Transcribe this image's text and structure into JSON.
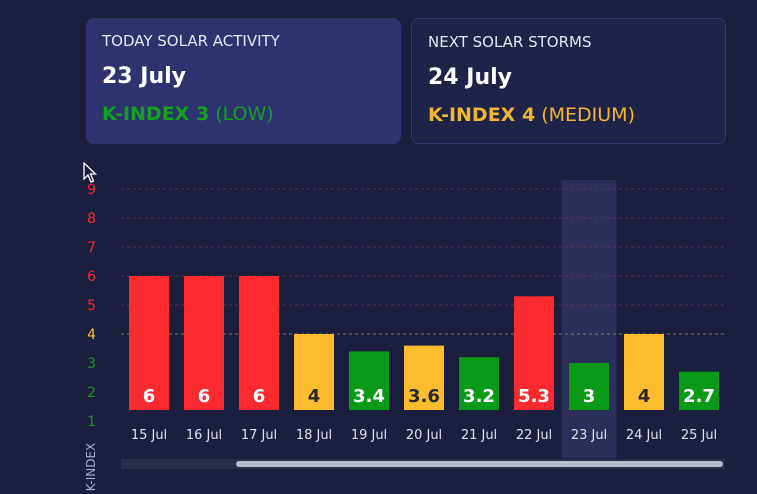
{
  "cards": {
    "today": {
      "label": "TODAY SOLAR ACTIVITY",
      "date": "23 July",
      "k_label": "K-INDEX 3",
      "level": "(LOW)"
    },
    "next": {
      "label": "NEXT SOLAR STORMS",
      "date": "24 July",
      "k_label": "K-INDEX 4",
      "level": "(MEDIUM)"
    }
  },
  "colors": {
    "low": "#0b9a17",
    "medium": "#fbbd2e",
    "high": "#fb2a2e",
    "background": "#1b1e3d"
  },
  "chart_data": {
    "type": "bar",
    "categories": [
      "15 Jul",
      "16 Jul",
      "17 Jul",
      "18 Jul",
      "19 Jul",
      "20 Jul",
      "21 Jul",
      "22 Jul",
      "23 Jul",
      "24 Jul",
      "25 Jul"
    ],
    "values": [
      6,
      6,
      6,
      4,
      3.4,
      3.6,
      3.2,
      5.3,
      3,
      4,
      2.7
    ],
    "value_labels": [
      "6",
      "6",
      "6",
      "4",
      "3.4",
      "3.6",
      "3.2",
      "5.3",
      "3",
      "4",
      "2.7"
    ],
    "ylabel": "K-INDEX",
    "yticks": [
      1,
      2,
      3,
      4,
      5,
      6,
      7,
      8,
      9
    ],
    "ylim": [
      1,
      9
    ],
    "highlighted_category": "23 Jul",
    "levels": [
      "high",
      "high",
      "high",
      "medium",
      "low",
      "medium",
      "low",
      "high",
      "low",
      "medium",
      "low"
    ]
  }
}
